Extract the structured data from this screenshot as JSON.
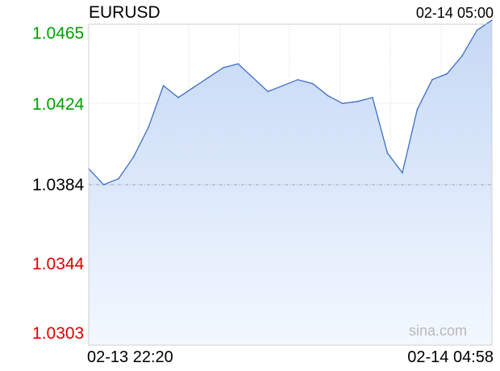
{
  "header": {
    "symbol": "EURUSD",
    "datetime": "02-14 05:00"
  },
  "axis": {
    "y_ticks": [
      {
        "label": "1.0465",
        "value": 1.0465,
        "class": "up"
      },
      {
        "label": "1.0424",
        "value": 1.0424,
        "class": "up"
      },
      {
        "label": "1.0384",
        "value": 1.0384,
        "class": "base"
      },
      {
        "label": "1.0344",
        "value": 1.0344,
        "class": "down"
      },
      {
        "label": "1.0303",
        "value": 1.0303,
        "class": "down"
      }
    ],
    "x_start": "02-13 22:20",
    "x_end": "02-14 04:58"
  },
  "watermark": "sina.com",
  "colors": {
    "line": "#3d6fc5",
    "fill_top": "#c5d8f5",
    "fill_bottom": "#f3f8ff",
    "grid": "#d8d8d8",
    "baseline": "#9aa3c2",
    "up": "#00a000",
    "down": "#e00000"
  },
  "chart_data": {
    "type": "area",
    "title": "EURUSD",
    "x": [
      "22:20",
      "22:35",
      "22:50",
      "23:05",
      "23:20",
      "23:35",
      "23:50",
      "00:05",
      "00:20",
      "00:35",
      "00:50",
      "01:05",
      "01:20",
      "01:35",
      "01:50",
      "02:05",
      "02:20",
      "02:35",
      "02:50",
      "03:05",
      "03:20",
      "03:35",
      "03:50",
      "04:05",
      "04:20",
      "04:35",
      "04:50",
      "04:58"
    ],
    "series": [
      {
        "values": [
          1.0392,
          1.0384,
          1.0387,
          1.0398,
          1.0413,
          1.0434,
          1.0428,
          1.0433,
          1.0438,
          1.0443,
          1.0445,
          1.0438,
          1.0431,
          1.0434,
          1.0437,
          1.0435,
          1.0429,
          1.0425,
          1.0426,
          1.0428,
          1.04,
          1.039,
          1.0422,
          1.0437,
          1.044,
          1.0449,
          1.0462,
          1.0467
        ]
      }
    ],
    "prev_close": 1.0384,
    "ylim": [
      1.0303,
      1.0465
    ],
    "grid": true
  }
}
